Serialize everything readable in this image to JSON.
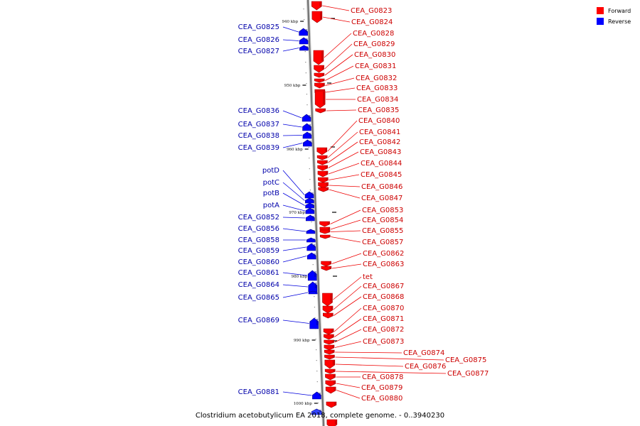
{
  "caption": "Clostridium acetobutylicum EA 2018, complete genome. - 0..3940230",
  "legend": [
    {
      "label": "Forward",
      "color": "#ff0000"
    },
    {
      "label": "Reverse",
      "color": "#0000ff"
    }
  ],
  "ticks": [
    "940 kbp",
    "950 kbp",
    "960 kbp",
    "970 kbp",
    "980 kbp",
    "990 kbp",
    "1000 kbp"
  ],
  "forward_genes": [
    "CEA_G0823",
    "CEA_G0824",
    "CEA_G0828",
    "CEA_G0829",
    "CEA_G0830",
    "CEA_G0831",
    "CEA_G0832",
    "CEA_G0833",
    "CEA_G0834",
    "CEA_G0835",
    "CEA_G0840",
    "CEA_G0841",
    "CEA_G0842",
    "CEA_G0843",
    "CEA_G0844",
    "CEA_G0845",
    "CEA_G0846",
    "CEA_G0847",
    "CEA_G0853",
    "CEA_G0854",
    "CEA_G0855",
    "CEA_G0857",
    "CEA_G0862",
    "CEA_G0863",
    "tet",
    "CEA_G0867",
    "CEA_G0868",
    "CEA_G0870",
    "CEA_G0871",
    "CEA_G0872",
    "CEA_G0873",
    "CEA_G0874",
    "CEA_G0875",
    "CEA_G0876",
    "CEA_G0877",
    "CEA_G0878",
    "CEA_G0879",
    "CEA_G0880"
  ],
  "reverse_genes": [
    "CEA_G0825",
    "CEA_G0826",
    "CEA_G0827",
    "CEA_G0836",
    "CEA_G0837",
    "CEA_G0838",
    "CEA_G0839",
    "potD",
    "potC",
    "potB",
    "potA",
    "CEA_G0852",
    "CEA_G0856",
    "CEA_G0858",
    "CEA_G0859",
    "CEA_G0860",
    "CEA_G0861",
    "CEA_G0864",
    "CEA_G0865",
    "CEA_G0869",
    "CEA_G0881"
  ]
}
